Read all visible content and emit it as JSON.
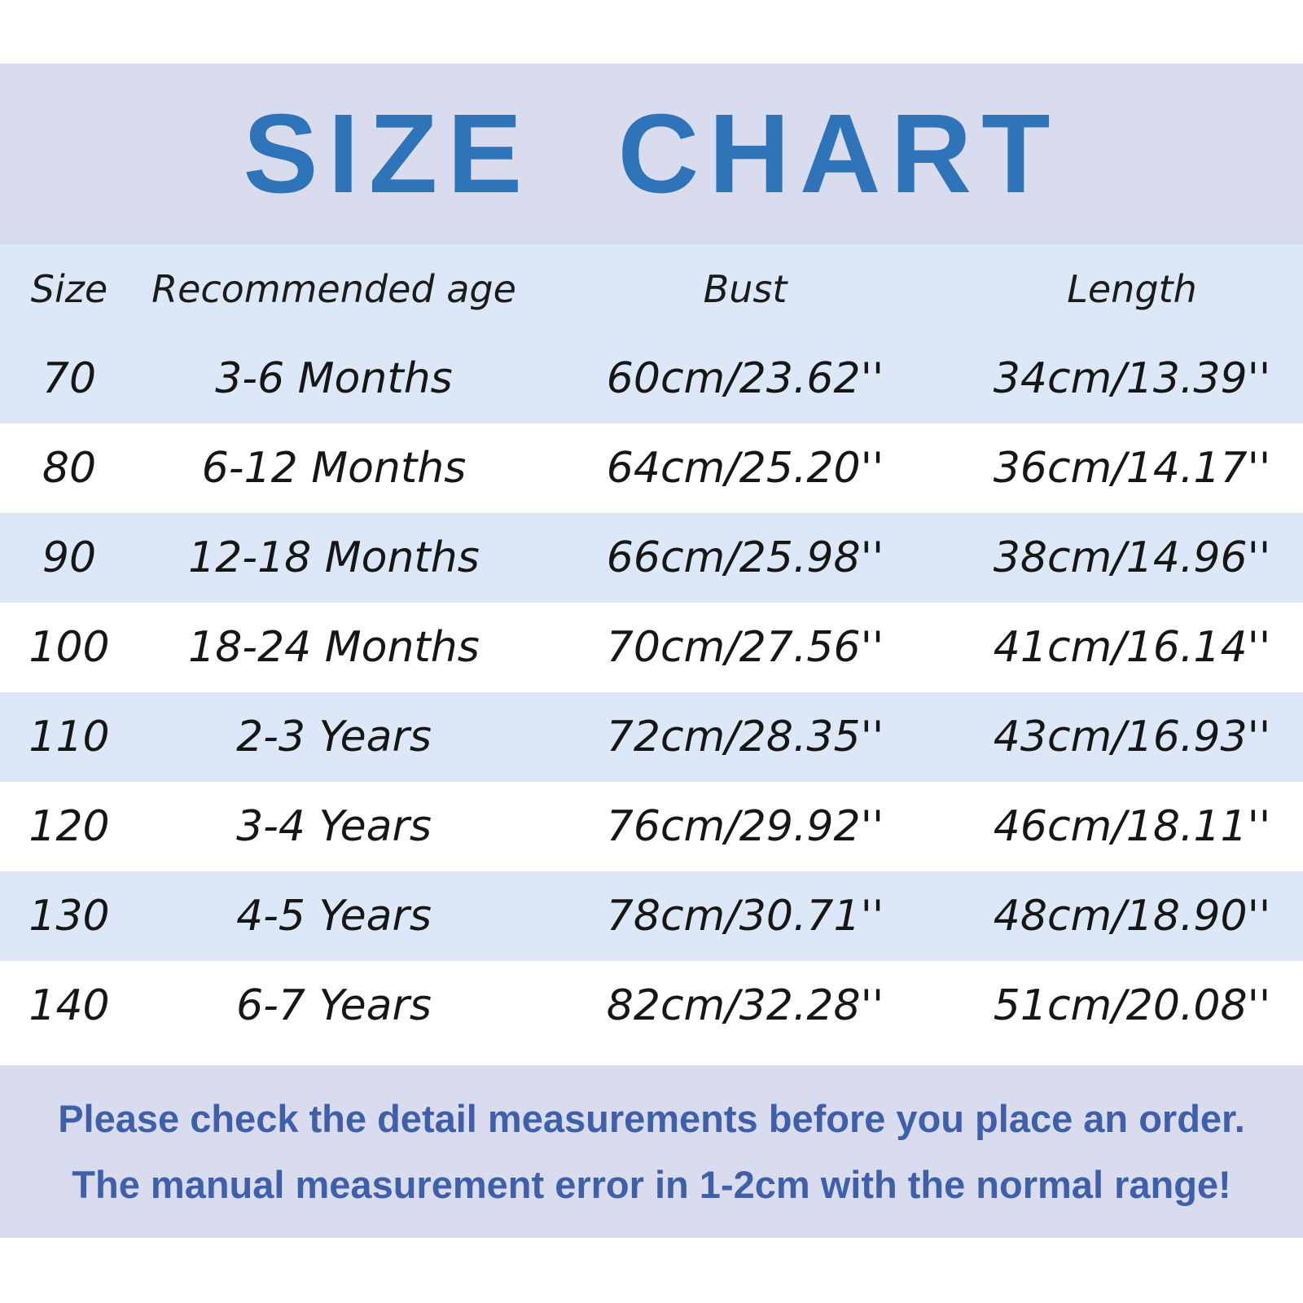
{
  "chart_data": {
    "type": "table",
    "title": "SIZE CHART",
    "columns": [
      "Size",
      "Recommended age",
      "Bust",
      "Length"
    ],
    "rows": [
      [
        "70",
        "3-6 Months",
        "60cm/23.62''",
        "34cm/13.39''"
      ],
      [
        "80",
        "6-12 Months",
        "64cm/25.20''",
        "36cm/14.17''"
      ],
      [
        "90",
        "12-18 Months",
        "66cm/25.98''",
        "38cm/14.96''"
      ],
      [
        "100",
        "18-24 Months",
        "70cm/27.56''",
        "41cm/16.14''"
      ],
      [
        "110",
        "2-3 Years",
        "72cm/28.35''",
        "43cm/16.93''"
      ],
      [
        "120",
        "3-4 Years",
        "76cm/29.92''",
        "46cm/18.11''"
      ],
      [
        "130",
        "4-5 Years",
        "78cm/30.71''",
        "48cm/18.90''"
      ],
      [
        "140",
        "6-7 Years",
        "82cm/32.28''",
        "51cm/20.08''"
      ]
    ]
  },
  "footer": {
    "line1": "Please check the detail measurements before you place an order.",
    "line2": "The manual measurement error in 1-2cm with the normal range!"
  },
  "colors": {
    "title_text": "#2f74b8",
    "band_lavender": "#d8dcee",
    "band_light_blue": "#dce8f7",
    "row_white": "#ffffff",
    "table_text": "#161616",
    "footer_text": "#3f5fa9"
  }
}
